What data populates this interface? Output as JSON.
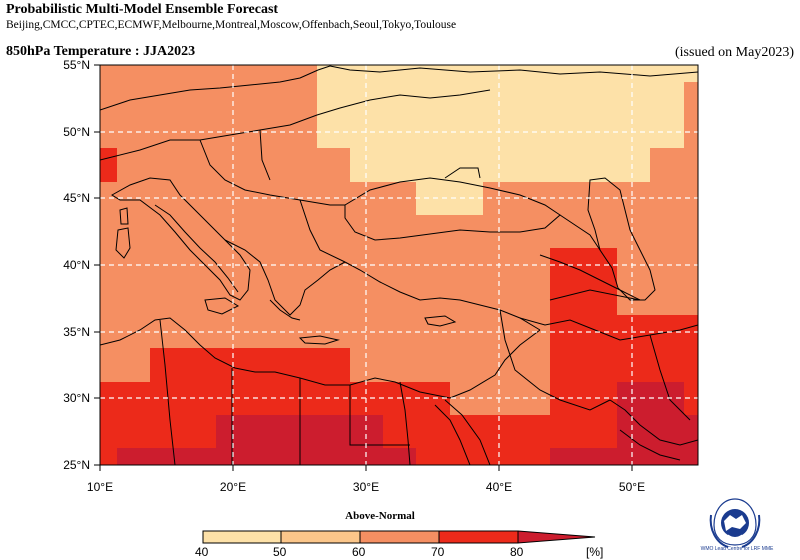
{
  "header": {
    "title": "Probabilistic Multi-Model Ensemble Forecast",
    "models": "Beijing,CMCC,CPTEC,ECMWF,Melbourne,Montreal,Moscow,Offenbach,Seoul,Tokyo,Toulouse",
    "subtitle": "850hPa Temperature : JJA2023",
    "issued": "(issued on May2023)"
  },
  "map": {
    "lon_range": [
      10,
      55
    ],
    "lat_range": [
      25,
      55
    ],
    "lat_labels": [
      "25°N",
      "30°N",
      "35°N",
      "40°N",
      "45°N",
      "50°N",
      "55°N"
    ],
    "lon_labels": [
      "10°E",
      "20°E",
      "30°E",
      "40°E",
      "50°E"
    ],
    "gridlines": "dashed white at 10° lon / 5° lat"
  },
  "colorbar": {
    "title": "Above-Normal",
    "labels": [
      "40",
      "50",
      "60",
      "70",
      "80"
    ],
    "unit": "[%]",
    "colors": [
      "#fde1a8",
      "#fbc68a",
      "#f58f62",
      "#ec2a1a",
      "#cc1d2e"
    ]
  },
  "logo": {
    "text": "WMO Lead Centre for LRF MME"
  }
}
